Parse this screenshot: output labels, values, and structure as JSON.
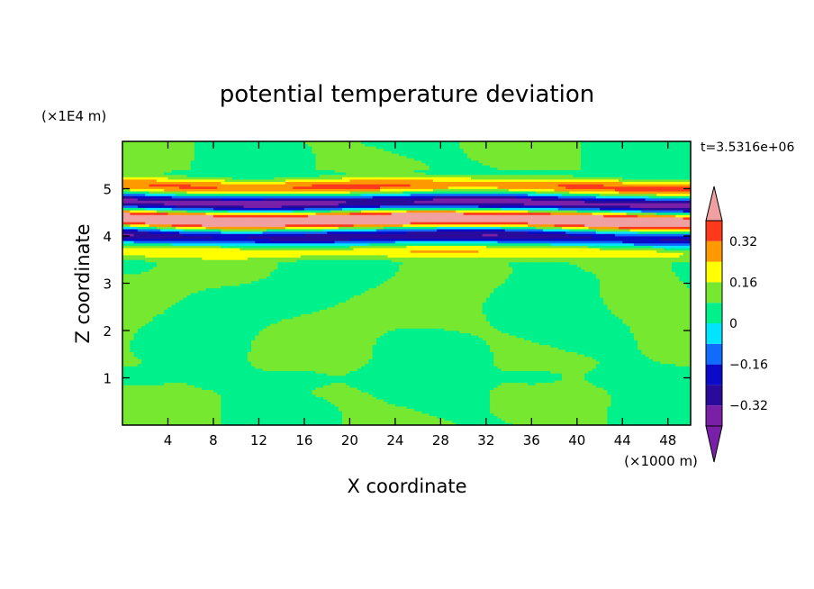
{
  "chart_data": {
    "type": "heatmap",
    "title": "potential temperature deviation",
    "xlabel": "X coordinate",
    "ylabel": "Z coordinate",
    "x_unit_label": "(×1000 m)",
    "y_unit_label": "(×1E4 m)",
    "time_label": "t=3.5316e+06",
    "xlim": [
      0,
      50
    ],
    "ylim": [
      0,
      6
    ],
    "x_ticks": [
      "4",
      "8",
      "12",
      "16",
      "20",
      "24",
      "28",
      "32",
      "36",
      "40",
      "44",
      "48"
    ],
    "y_ticks": [
      "1",
      "2",
      "3",
      "4",
      "5"
    ],
    "colorbar": {
      "levels": [
        -0.4,
        -0.32,
        -0.24,
        -0.16,
        -0.08,
        0,
        0.08,
        0.16,
        0.24,
        0.32,
        0.4
      ],
      "colors": [
        "#7a1fa8",
        "#2a0a9a",
        "#0a0ac8",
        "#0f6cff",
        "#00e5ff",
        "#00f08c",
        "#77e830",
        "#ffff00",
        "#ff9900",
        "#ff3a1a",
        "#f0a0a0"
      ],
      "under_color": "#7a1fa8",
      "over_color": "#f0a0a0",
      "labels": [
        {
          "value": 0.32,
          "text": "0.32"
        },
        {
          "value": 0.16,
          "text": "0.16"
        },
        {
          "value": 0,
          "text": "0"
        },
        {
          "value": -0.16,
          "text": "−0.16"
        },
        {
          "value": -0.32,
          "text": "−0.32"
        }
      ]
    }
  }
}
